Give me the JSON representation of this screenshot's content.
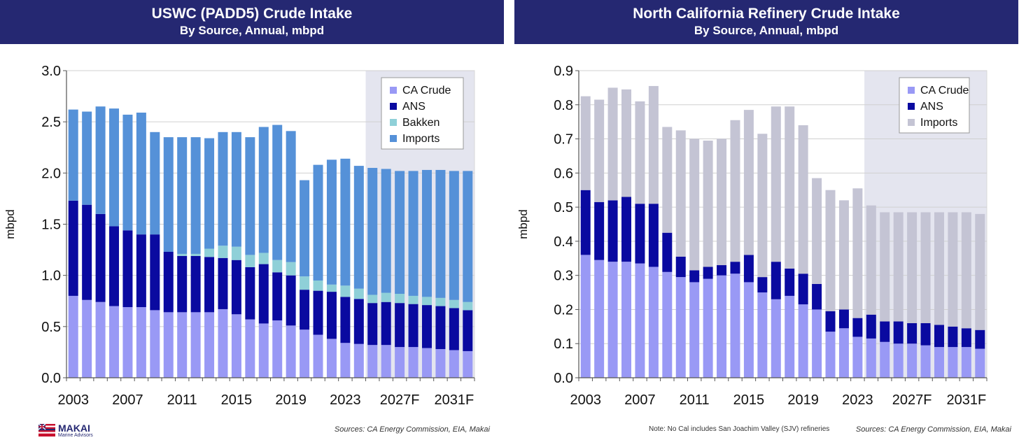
{
  "left": {
    "title": "USWC (PADD5) Crude Intake",
    "subtitle": "By Source, Annual, mbpd",
    "source": "Sources: CA Energy Commission, EIA, Makai"
  },
  "right": {
    "title": "North California Refinery Crude Intake",
    "subtitle": "By Source, Annual, mbpd",
    "note": "Note: No Cal includes San Joachim Valley (SJV) refineries",
    "source": "Sources: CA Energy Commission, EIA, Makai"
  },
  "logo": {
    "name": "MAKAI",
    "sub": "Marine Advisors"
  },
  "chart_data": [
    {
      "id": "left",
      "type": "bar",
      "stacked": true,
      "ylabel": "mbpd",
      "ylim": [
        0,
        3.0
      ],
      "yticks": [
        "0.0",
        "0.5",
        "1.0",
        "1.5",
        "2.0",
        "2.5",
        "3.0"
      ],
      "categories": [
        "2003",
        "2004",
        "2005",
        "2006",
        "2007",
        "2008",
        "2009",
        "2010",
        "2011",
        "2012",
        "2013",
        "2014",
        "2015",
        "2016",
        "2017",
        "2018",
        "2019",
        "2020",
        "2021",
        "2022",
        "2023",
        "2024",
        "2025",
        "2026",
        "2027F",
        "2028",
        "2029",
        "2030",
        "2031F",
        "2032"
      ],
      "xtick_labels": [
        "2003",
        "2007",
        "2011",
        "2015",
        "2019",
        "2023",
        "2027F",
        "2031F"
      ],
      "forecast_shading_from": "2025",
      "legend_position": "top-right",
      "colors": {
        "CA Crude": "#9999f5",
        "ANS": "#0a0aa0",
        "Bakken": "#8fd0d8",
        "Imports": "#5591d8",
        "shade": "#e4e5ef"
      },
      "series": [
        {
          "name": "CA Crude",
          "values": [
            0.8,
            0.76,
            0.74,
            0.7,
            0.69,
            0.69,
            0.66,
            0.64,
            0.64,
            0.64,
            0.64,
            0.67,
            0.62,
            0.57,
            0.53,
            0.56,
            0.51,
            0.47,
            0.42,
            0.38,
            0.34,
            0.33,
            0.32,
            0.32,
            0.3,
            0.3,
            0.29,
            0.28,
            0.27,
            0.26
          ]
        },
        {
          "name": "ANS",
          "values": [
            0.93,
            0.93,
            0.86,
            0.78,
            0.75,
            0.71,
            0.74,
            0.59,
            0.55,
            0.55,
            0.54,
            0.5,
            0.53,
            0.51,
            0.58,
            0.47,
            0.49,
            0.39,
            0.43,
            0.46,
            0.45,
            0.44,
            0.41,
            0.42,
            0.43,
            0.42,
            0.42,
            0.42,
            0.41,
            0.4
          ]
        },
        {
          "name": "Bakken",
          "values": [
            0,
            0,
            0,
            0,
            0,
            0,
            0,
            0,
            0.02,
            0.02,
            0.08,
            0.12,
            0.13,
            0.12,
            0.11,
            0.12,
            0.13,
            0.13,
            0.1,
            0.07,
            0.11,
            0.1,
            0.08,
            0.09,
            0.09,
            0.08,
            0.08,
            0.08,
            0.08,
            0.08
          ]
        },
        {
          "name": "Imports",
          "values": [
            0.89,
            0.91,
            1.05,
            1.15,
            1.13,
            1.19,
            1.0,
            1.12,
            1.14,
            1.14,
            1.08,
            1.11,
            1.12,
            1.15,
            1.23,
            1.32,
            1.28,
            0.94,
            1.13,
            1.22,
            1.24,
            1.2,
            1.24,
            1.21,
            1.2,
            1.22,
            1.24,
            1.25,
            1.26,
            1.28
          ]
        }
      ]
    },
    {
      "id": "right",
      "type": "bar",
      "stacked": true,
      "ylabel": "mbpd",
      "ylim": [
        0,
        0.9
      ],
      "yticks": [
        "0.0",
        "0.1",
        "0.2",
        "0.3",
        "0.4",
        "0.5",
        "0.6",
        "0.7",
        "0.8",
        "0.9"
      ],
      "categories": [
        "2003",
        "2004",
        "2005",
        "2006",
        "2007",
        "2008",
        "2009",
        "2010",
        "2011",
        "2012",
        "2013",
        "2014",
        "2015",
        "2016",
        "2017",
        "2018",
        "2019",
        "2020",
        "2021",
        "2022",
        "2023",
        "2024",
        "2025",
        "2026",
        "2027F",
        "2028",
        "2029",
        "2030",
        "2031F",
        "2032"
      ],
      "xtick_labels": [
        "2003",
        "2007",
        "2011",
        "2015",
        "2019",
        "2023",
        "2027F",
        "2031F"
      ],
      "forecast_shading_from": "2024",
      "legend_position": "top-right",
      "colors": {
        "CA Crude": "#9999f5",
        "ANS": "#0a0aa0",
        "Imports": "#c4c4d4",
        "shade": "#e4e5ef"
      },
      "series": [
        {
          "name": "CA Crude",
          "values": [
            0.36,
            0.345,
            0.34,
            0.34,
            0.335,
            0.325,
            0.31,
            0.295,
            0.28,
            0.29,
            0.3,
            0.305,
            0.28,
            0.25,
            0.23,
            0.24,
            0.215,
            0.2,
            0.135,
            0.145,
            0.12,
            0.115,
            0.105,
            0.1,
            0.1,
            0.095,
            0.09,
            0.09,
            0.09,
            0.085
          ]
        },
        {
          "name": "ANS",
          "values": [
            0.19,
            0.17,
            0.18,
            0.19,
            0.175,
            0.185,
            0.115,
            0.06,
            0.035,
            0.035,
            0.03,
            0.035,
            0.08,
            0.045,
            0.11,
            0.08,
            0.09,
            0.075,
            0.06,
            0.055,
            0.055,
            0.07,
            0.06,
            0.065,
            0.06,
            0.065,
            0.065,
            0.06,
            0.055,
            0.055
          ]
        },
        {
          "name": "Imports",
          "values": [
            0.275,
            0.3,
            0.33,
            0.315,
            0.3,
            0.345,
            0.31,
            0.37,
            0.385,
            0.37,
            0.37,
            0.415,
            0.425,
            0.42,
            0.455,
            0.475,
            0.435,
            0.31,
            0.355,
            0.32,
            0.38,
            0.32,
            0.32,
            0.32,
            0.325,
            0.325,
            0.33,
            0.335,
            0.34,
            0.34
          ]
        }
      ]
    }
  ]
}
